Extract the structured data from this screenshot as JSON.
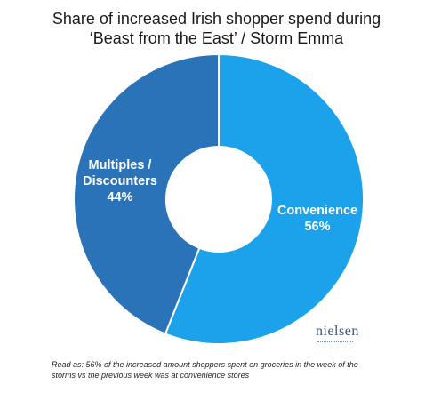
{
  "title": {
    "line1": "Share of increased Irish shopper spend during",
    "line2": "‘Beast from the East’ / Storm Emma"
  },
  "chart_data": {
    "type": "pie",
    "donut": true,
    "slices": [
      {
        "name": "Convenience",
        "name_lines": [
          "Convenience"
        ],
        "value": 56,
        "value_label": "56%",
        "color": "#1ba2ea"
      },
      {
        "name": "Multiples / Discounters",
        "name_lines": [
          "Multiples /",
          "Discounters"
        ],
        "value": 44,
        "value_label": "44%",
        "color": "#2a73b8"
      }
    ],
    "start_angle": "12 o'clock",
    "direction": "clockwise",
    "legend": "none"
  },
  "logo": {
    "text": "nielsen"
  },
  "footnote": {
    "line1": "Read as: 56% of the increased amount shoppers spent on groceries in the week of the",
    "line2": "storms vs the previous week was at convenience stores"
  }
}
